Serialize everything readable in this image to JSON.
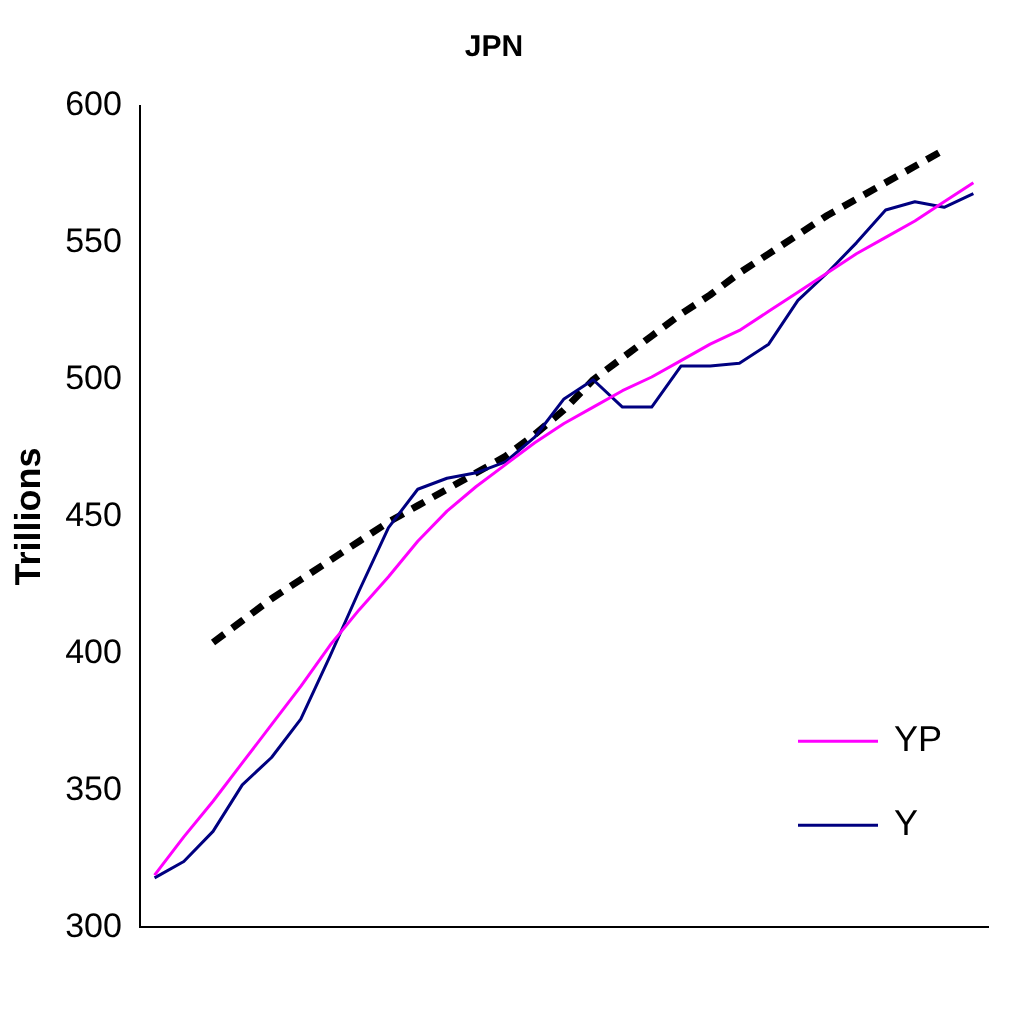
{
  "chart_data": {
    "type": "line",
    "title": "JPN",
    "ylabel": "Trillions",
    "categories": [
      null,
      null,
      null,
      null,
      null,
      null,
      null,
      null,
      null,
      null,
      null,
      null,
      null,
      null,
      null,
      null,
      null,
      null,
      null,
      null,
      null,
      null,
      null,
      null,
      null,
      null,
      null,
      null,
      null
    ],
    "series": [
      {
        "name": "YP",
        "color": "#ff00ff",
        "line_style": "solid",
        "values": [
          319,
          333,
          346,
          360,
          374,
          388,
          403,
          416,
          428,
          441,
          452,
          461,
          469,
          477,
          484,
          490,
          496,
          501,
          507,
          513,
          518,
          525,
          532,
          539,
          546,
          552,
          558,
          565,
          572
        ]
      },
      {
        "name": "Y",
        "color": "#000080",
        "line_style": "solid",
        "values": [
          318,
          324,
          335,
          352,
          362,
          376,
          399,
          423,
          446,
          460,
          464,
          466,
          470,
          479,
          493,
          500,
          490,
          490,
          505,
          505,
          506,
          513,
          529,
          539,
          550,
          562,
          565,
          563,
          568
        ]
      },
      {
        "color": "#000000",
        "line_style": "dashed",
        "values": [
          null,
          null,
          404,
          412,
          420,
          427,
          434,
          441,
          448,
          454,
          460,
          466,
          472,
          480,
          489,
          500,
          508,
          516,
          524,
          531,
          539,
          546,
          553,
          560,
          566,
          572,
          578,
          584,
          null
        ]
      }
    ],
    "ylim": [
      300,
      600
    ],
    "yticks": [
      300,
      350,
      400,
      450,
      500,
      550,
      600
    ],
    "grid": false,
    "legend": "bottom right",
    "marker": "none"
  }
}
